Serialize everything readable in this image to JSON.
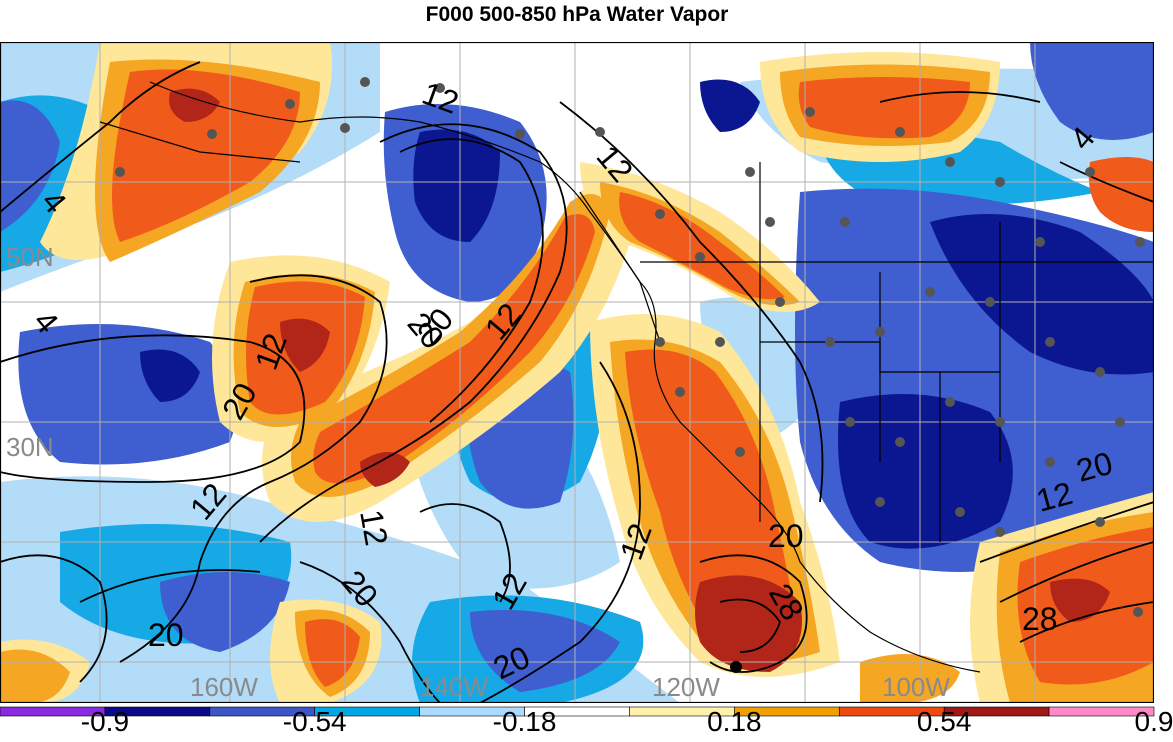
{
  "title": "F000 500-850 hPa Water Vapor",
  "lat_labels": [
    "50N",
    "30N"
  ],
  "lon_labels": [
    "160W",
    "140W",
    "120W",
    "100W"
  ],
  "contour_labels": [
    "12",
    "4",
    "4",
    "4",
    "20",
    "12",
    "20",
    "12",
    "20",
    "12",
    "12",
    "12",
    "20",
    "20",
    "20",
    "20",
    "28",
    "12",
    "28",
    "20",
    "12",
    "12"
  ],
  "colorbar": {
    "colors": [
      "#8a2be2",
      "#0a0a8a",
      "#3c55c8",
      "#00a8e8",
      "#aadcff",
      "#ffffff",
      "#fff0aa",
      "#f0a000",
      "#ee4a10",
      "#a01818",
      "#ff88c8"
    ],
    "labels": [
      "-0.9",
      "-0.54",
      "-0.18",
      "0.18",
      "0.54",
      "0.9"
    ]
  },
  "colors": {
    "orange": "#f05a1a",
    "blue": "#3f5ed0",
    "navy": "#0b1790",
    "cyan": "#16a9e6",
    "lightblue": "#b3dcf8",
    "yellow": "#ffe79a",
    "amber": "#f5a623",
    "darkred": "#b2261a"
  }
}
